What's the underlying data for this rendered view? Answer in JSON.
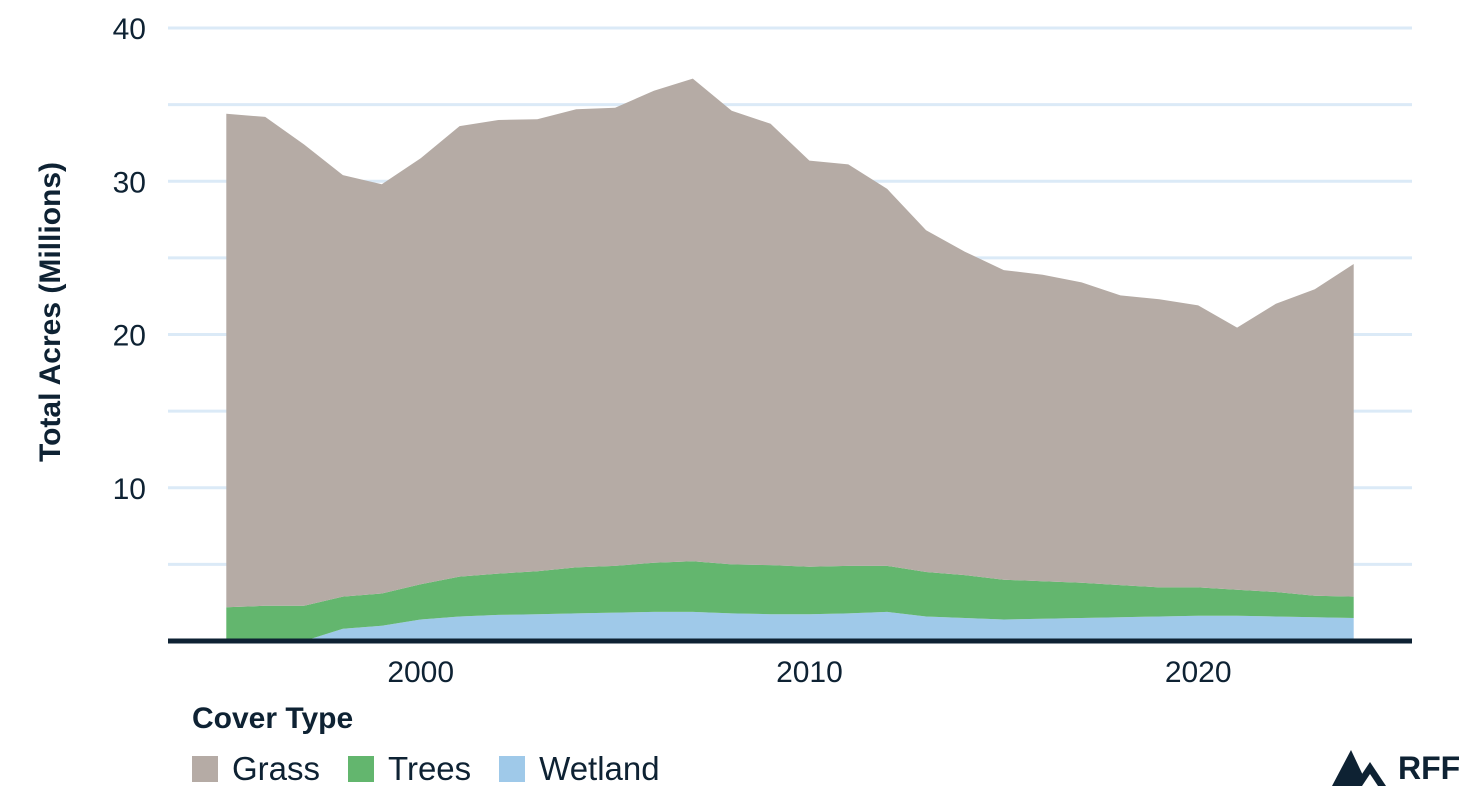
{
  "chart_data": {
    "type": "area",
    "stacked": true,
    "title": "",
    "xlabel": "",
    "ylabel": "Total Acres (Millions)",
    "xlim": [
      1993.5,
      2025.5
    ],
    "ylim": [
      0,
      40
    ],
    "yticks": [
      "10",
      "20",
      "30",
      "40"
    ],
    "ytick_values": [
      10,
      20,
      30,
      40
    ],
    "xticks": [
      "2000",
      "2010",
      "2020"
    ],
    "xtick_values": [
      2000,
      2010,
      2020
    ],
    "grid": true,
    "legend_title": "Cover Type",
    "legend_position": "bottom-left",
    "x": [
      1995,
      1996,
      1997,
      1998,
      1999,
      2000,
      2001,
      2002,
      2003,
      2004,
      2005,
      2006,
      2007,
      2008,
      2009,
      2010,
      2011,
      2012,
      2013,
      2014,
      2015,
      2016,
      2017,
      2018,
      2019,
      2020,
      2021,
      2022,
      2023,
      2024
    ],
    "series": [
      {
        "name": "Wetland",
        "color": "#9fc9e9",
        "values": [
          0.0,
          0.0,
          0.0,
          0.8,
          1.0,
          1.4,
          1.6,
          1.7,
          1.75,
          1.8,
          1.85,
          1.9,
          1.9,
          1.8,
          1.75,
          1.75,
          1.8,
          1.9,
          1.6,
          1.5,
          1.4,
          1.45,
          1.5,
          1.55,
          1.6,
          1.65,
          1.65,
          1.6,
          1.55,
          1.5
        ]
      },
      {
        "name": "Trees",
        "color": "#63b66e",
        "values": [
          2.2,
          2.3,
          2.3,
          2.1,
          2.1,
          2.3,
          2.6,
          2.7,
          2.8,
          3.0,
          3.05,
          3.2,
          3.3,
          3.2,
          3.2,
          3.1,
          3.1,
          3.0,
          2.9,
          2.8,
          2.6,
          2.45,
          2.3,
          2.1,
          1.9,
          1.85,
          1.7,
          1.6,
          1.4,
          1.4
        ]
      },
      {
        "name": "Grass",
        "color": "#b5aba5",
        "values": [
          32.2,
          31.9,
          30.1,
          27.5,
          26.7,
          27.8,
          29.4,
          29.6,
          29.5,
          29.9,
          29.9,
          30.8,
          31.5,
          29.6,
          28.8,
          26.5,
          26.2,
          24.6,
          22.3,
          21.1,
          20.2,
          20.0,
          19.6,
          18.9,
          18.8,
          18.4,
          17.1,
          18.8,
          20.0,
          21.7
        ]
      }
    ]
  },
  "logo": {
    "text": "RFF",
    "icon": "mountain-logo-icon"
  }
}
